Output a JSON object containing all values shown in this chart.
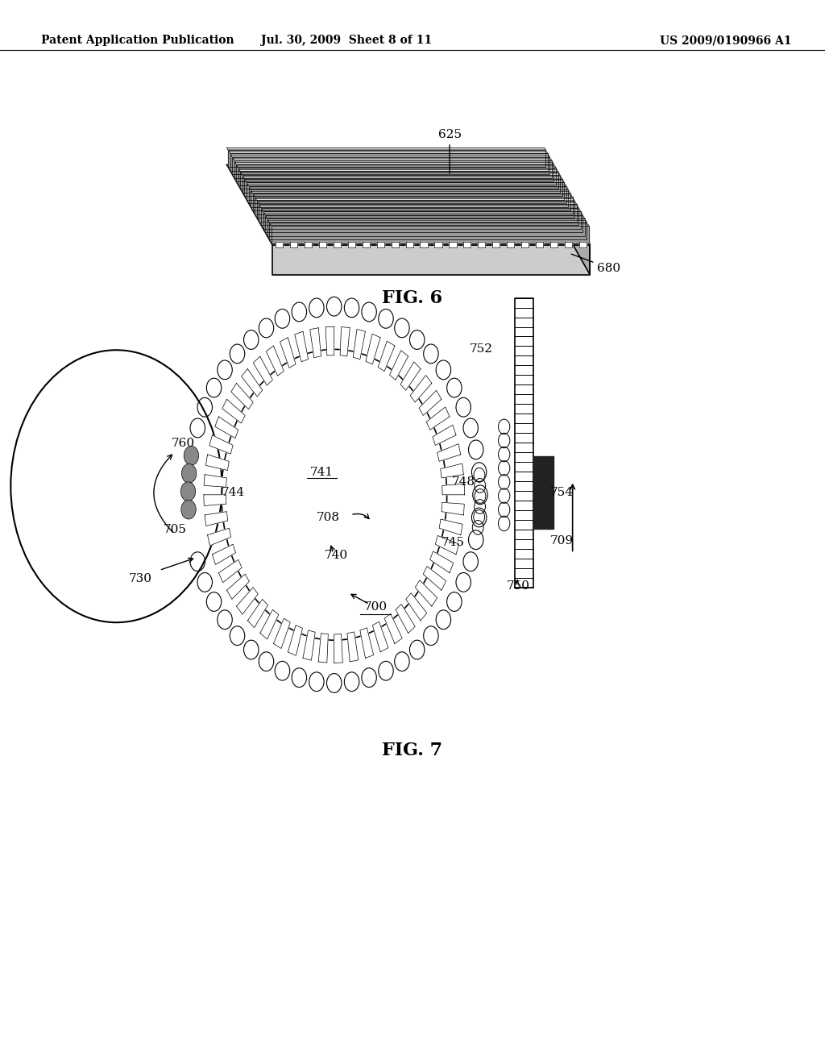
{
  "bg_color": "#ffffff",
  "text_color": "#000000",
  "header_left": "Patent Application Publication",
  "header_mid": "Jul. 30, 2009  Sheet 8 of 11",
  "header_right": "US 2009/0190966 A1",
  "fig6_label": "FIG. 6",
  "fig7_label": "FIG. 7",
  "fig6_ref625": "625",
  "fig6_ref680": "680"
}
